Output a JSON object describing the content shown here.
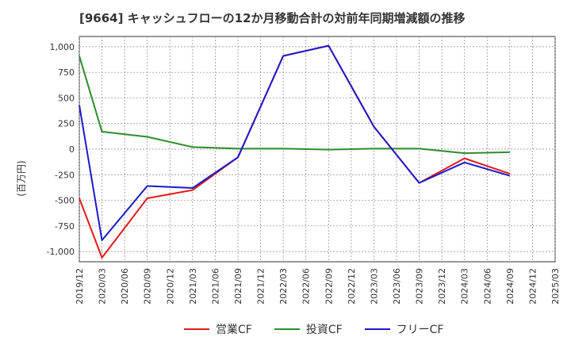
{
  "chart_data": {
    "type": "line",
    "title": "[9664]  キャッシュフローの12か月移動合計の対前年同期増減額の推移",
    "ylabel": "(百万円)",
    "ylim": [
      -1100,
      1100
    ],
    "yticks": [
      1000,
      750,
      500,
      250,
      0,
      -250,
      -500,
      -750,
      -1000
    ],
    "ytick_labels": [
      "1,000",
      "750",
      "500",
      "250",
      "0",
      "-250",
      "-500",
      "-750",
      "-1,000"
    ],
    "x_labels": [
      "2019/12",
      "2020/03",
      "2020/06",
      "2020/09",
      "2020/12",
      "2021/03",
      "2021/06",
      "2021/09",
      "2021/12",
      "2022/03",
      "2022/06",
      "2022/09",
      "2022/12",
      "2023/03",
      "2023/06",
      "2023/09",
      "2023/12",
      "2024/03",
      "2024/06",
      "2024/09",
      "2024/12",
      "2025/03"
    ],
    "grid": true,
    "legend_position": "bottom",
    "series": [
      {
        "name": "営業CF",
        "color": "#e31a1c",
        "x": [
          "2019/12",
          "2020/03",
          "2020/09",
          "2021/03",
          "2021/09",
          "2022/03",
          "2022/09",
          "2023/03",
          "2023/09",
          "2024/03",
          "2024/09"
        ],
        "values": [
          -480,
          -1060,
          -480,
          -400,
          -80,
          910,
          1010,
          220,
          -330,
          -90,
          -240
        ]
      },
      {
        "name": "投資CF",
        "color": "#2e8b2e",
        "x": [
          "2019/12",
          "2020/03",
          "2020/09",
          "2021/03",
          "2021/09",
          "2022/03",
          "2022/09",
          "2023/03",
          "2023/09",
          "2024/03",
          "2024/09"
        ],
        "values": [
          910,
          170,
          120,
          20,
          5,
          5,
          -5,
          5,
          5,
          -40,
          -30
        ]
      },
      {
        "name": "フリーCF",
        "color": "#1a1acc",
        "x": [
          "2019/12",
          "2020/03",
          "2020/09",
          "2021/03",
          "2021/09",
          "2022/03",
          "2022/09",
          "2023/03",
          "2023/09",
          "2024/03",
          "2024/09"
        ],
        "values": [
          430,
          -890,
          -360,
          -380,
          -80,
          910,
          1010,
          220,
          -330,
          -130,
          -260
        ]
      }
    ]
  }
}
